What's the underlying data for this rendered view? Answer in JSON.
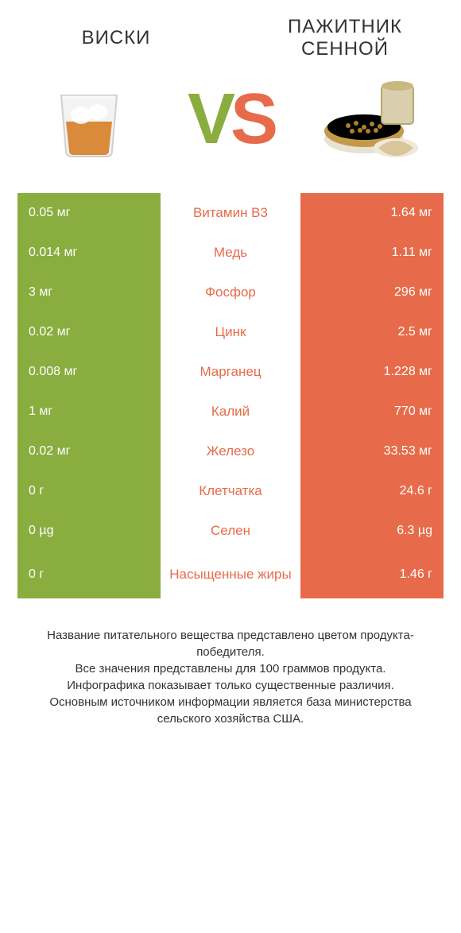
{
  "colors": {
    "left_bg": "#8aad3f",
    "right_bg": "#e76b4a",
    "mid_text_winner_right": "#e76b4a",
    "mid_text_winner_left": "#8aad3f",
    "page_bg": "#ffffff",
    "title_text": "#333333"
  },
  "header": {
    "left_title": "ВИСКИ",
    "right_title": "ПАЖИТНИК СЕННОЙ",
    "vs_v": "V",
    "vs_s": "S"
  },
  "rows": [
    {
      "left": "0.05 мг",
      "mid": "Витамин B3",
      "right": "1.64 мг",
      "winner": "right",
      "tall": false
    },
    {
      "left": "0.014 мг",
      "mid": "Медь",
      "right": "1.11 мг",
      "winner": "right",
      "tall": false
    },
    {
      "left": "3 мг",
      "mid": "Фосфор",
      "right": "296 мг",
      "winner": "right",
      "tall": false
    },
    {
      "left": "0.02 мг",
      "mid": "Цинк",
      "right": "2.5 мг",
      "winner": "right",
      "tall": false
    },
    {
      "left": "0.008 мг",
      "mid": "Марганец",
      "right": "1.228 мг",
      "winner": "right",
      "tall": false
    },
    {
      "left": "1 мг",
      "mid": "Калий",
      "right": "770 мг",
      "winner": "right",
      "tall": false
    },
    {
      "left": "0.02 мг",
      "mid": "Железо",
      "right": "33.53 мг",
      "winner": "right",
      "tall": false
    },
    {
      "left": "0 г",
      "mid": "Клетчатка",
      "right": "24.6 г",
      "winner": "right",
      "tall": false
    },
    {
      "left": "0 µg",
      "mid": "Селен",
      "right": "6.3 µg",
      "winner": "right",
      "tall": false
    },
    {
      "left": "0 г",
      "mid": "Насыщенные жиры",
      "right": "1.46 г",
      "winner": "right",
      "tall": true
    }
  ],
  "footer": {
    "line1": "Название питательного вещества представлено цветом продукта-победителя.",
    "line2": "Все значения представлены для 100 граммов продукта.",
    "line3": "Инфографика показывает только существенные различия.",
    "line4": "Основным источником информации является база министерства сельского хозяйства США."
  }
}
